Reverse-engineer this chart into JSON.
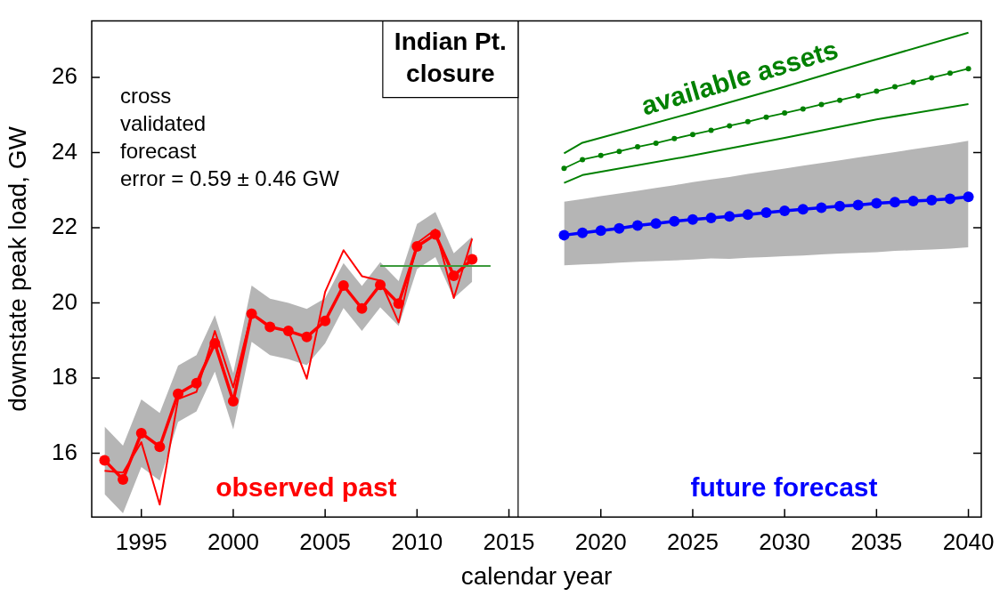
{
  "chart_data": {
    "type": "line",
    "xlabel": "calendar year",
    "ylabel": "downstate peak load, GW",
    "xlim": [
      1992.3,
      2040.7
    ],
    "xticks": [
      1995,
      2000,
      2005,
      2010,
      2015,
      2020,
      2025,
      2030,
      2035,
      2040
    ],
    "ylim": [
      14.3,
      27.5
    ],
    "yticks": [
      16,
      18,
      20,
      22,
      24,
      26
    ],
    "legend": false,
    "annotations": [
      "cross\nvalidated\nforecast\nerror = 0.59 ± 0.46 GW"
    ],
    "ref_lines": [
      {
        "axis": "x",
        "value": 2015.5,
        "label": "Indian Pt.\nclosure",
        "color": "#000000"
      }
    ],
    "series": [
      {
        "color": "#ff0000",
        "marker": "none",
        "x": [
          1993,
          1994,
          1995,
          1996,
          1997,
          1998,
          1999,
          2000,
          2001,
          2002,
          2003,
          2004,
          2005,
          2006,
          2007,
          2008,
          2009,
          2010,
          2011,
          2012,
          2013
        ],
        "values": [
          15.53,
          15.48,
          16.29,
          14.63,
          17.44,
          17.63,
          19.25,
          17.75,
          19.71,
          19.36,
          19.25,
          17.98,
          20.29,
          21.4,
          20.71,
          20.59,
          19.48,
          21.59,
          21.95,
          20.13,
          21.71
        ]
      },
      {
        "name": "observed past",
        "color": "#ff0000",
        "marker": "circle",
        "x": [
          1993,
          1994,
          1995,
          1996,
          1997,
          1998,
          1999,
          2000,
          2001,
          2002,
          2003,
          2004,
          2005,
          2006,
          2007,
          2008,
          2009,
          2010,
          2011,
          2012,
          2013
        ],
        "values": [
          15.81,
          15.3,
          16.53,
          16.17,
          17.58,
          17.86,
          18.92,
          17.38,
          19.71,
          19.36,
          19.25,
          19.09,
          19.52,
          20.46,
          19.85,
          20.48,
          19.98,
          21.5,
          21.82,
          20.72,
          21.16
        ],
        "lower": [
          14.91,
          14.4,
          15.63,
          15.27,
          16.83,
          17.11,
          18.17,
          16.63,
          18.96,
          18.61,
          18.5,
          18.34,
          18.92,
          19.86,
          19.25,
          19.88,
          19.38,
          20.9,
          21.22,
          20.12,
          20.56
        ],
        "upper": [
          16.71,
          16.2,
          17.43,
          17.07,
          18.33,
          18.61,
          19.67,
          18.13,
          20.46,
          20.11,
          20.0,
          19.84,
          20.12,
          21.06,
          20.45,
          21.08,
          20.58,
          22.1,
          22.42,
          21.32,
          21.76
        ]
      },
      {
        "color": "#3c9a3c",
        "marker": "none",
        "x": [
          2008,
          2014
        ],
        "values": [
          20.98,
          20.98
        ]
      },
      {
        "name": "available assets",
        "color": "#008000",
        "marker": "none",
        "x": [
          2018,
          2019,
          2025,
          2030,
          2035,
          2040
        ],
        "values": [
          23.98,
          24.26,
          25.06,
          25.75,
          26.48,
          27.19
        ]
      },
      {
        "color": "#008000",
        "marker": "circle",
        "x": [
          2018,
          2019,
          2020,
          2021,
          2022,
          2023,
          2024,
          2025,
          2026,
          2027,
          2028,
          2029,
          2030,
          2031,
          2032,
          2033,
          2034,
          2035,
          2036,
          2037,
          2038,
          2039,
          2040
        ],
        "values": [
          23.58,
          23.81,
          23.92,
          24.03,
          24.15,
          24.25,
          24.37,
          24.48,
          24.59,
          24.71,
          24.82,
          24.94,
          25.05,
          25.16,
          25.28,
          25.39,
          25.51,
          25.63,
          25.75,
          25.87,
          25.99,
          26.11,
          26.23
        ]
      },
      {
        "color": "#008000",
        "marker": "none",
        "x": [
          2018,
          2019,
          2025,
          2030,
          2035,
          2040
        ],
        "values": [
          23.19,
          23.4,
          23.92,
          24.39,
          24.88,
          25.29
        ]
      },
      {
        "name": "future forecast",
        "color": "#0000ff",
        "marker": "circle",
        "x": [
          2018,
          2019,
          2020,
          2021,
          2022,
          2023,
          2024,
          2025,
          2026,
          2027,
          2028,
          2029,
          2030,
          2031,
          2032,
          2033,
          2034,
          2035,
          2036,
          2037,
          2038,
          2039,
          2040
        ],
        "values": [
          21.8,
          21.86,
          21.92,
          21.98,
          22.06,
          22.11,
          22.17,
          22.22,
          22.26,
          22.3,
          22.35,
          22.4,
          22.45,
          22.49,
          22.53,
          22.57,
          22.6,
          22.65,
          22.68,
          22.71,
          22.73,
          22.77,
          22.82
        ],
        "lower": [
          21.0,
          21.02,
          21.04,
          21.07,
          21.09,
          21.11,
          21.13,
          21.15,
          21.18,
          21.17,
          21.2,
          21.22,
          21.24,
          21.26,
          21.29,
          21.31,
          21.33,
          21.35,
          21.38,
          21.4,
          21.42,
          21.44,
          21.48
        ],
        "upper": [
          22.69,
          22.76,
          22.84,
          22.91,
          22.98,
          23.06,
          23.13,
          23.21,
          23.28,
          23.35,
          23.43,
          23.5,
          23.57,
          23.65,
          23.72,
          23.79,
          23.87,
          23.94,
          24.01,
          24.09,
          24.16,
          24.23,
          24.31
        ]
      }
    ]
  }
}
